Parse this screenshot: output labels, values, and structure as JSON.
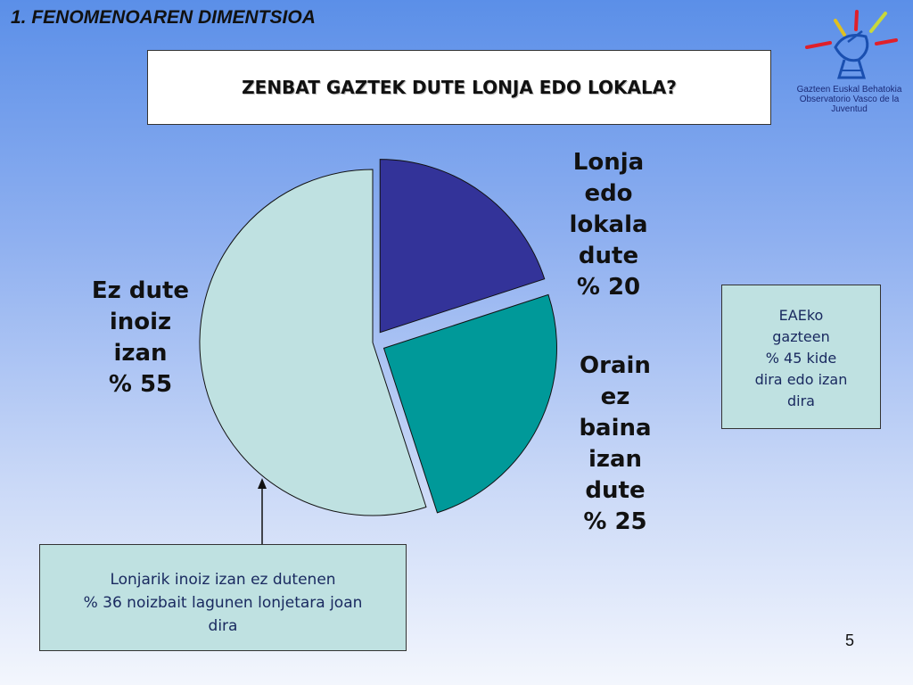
{
  "section_title": "1. FENOMENOAREN DIMENTSIOA",
  "question": "ZENBAT GAZTEK DUTE LONJA EDO LOKALA?",
  "logo": {
    "line1": "Gazteen Euskal Behatokia",
    "line2": "Observatorio Vasco de la Juventud",
    "icon": "satellite-dish-icon"
  },
  "chart_data": {
    "type": "pie",
    "slices": [
      {
        "label": "Lonja edo lokala dute % 20",
        "value": 20,
        "color": "#333399",
        "exploded": true
      },
      {
        "label": "Orain ez baina izan dute % 25",
        "value": 25,
        "color": "#009999",
        "exploded": true
      },
      {
        "label": "Ez dute inoiz izan % 55",
        "value": 55,
        "color": "#bfe1e1",
        "exploded": false
      }
    ],
    "labels": {
      "lonja": [
        "Lonja",
        "edo",
        "lokala",
        "dute",
        "% 20"
      ],
      "orain": [
        "Orain",
        "ez",
        "baina",
        "izan",
        "dute",
        "% 25"
      ],
      "ez": [
        "Ez dute",
        "inoiz",
        "izan",
        "% 55"
      ]
    }
  },
  "notes": {
    "right": [
      "EAEko",
      "gazteen",
      "% 45 kide",
      "dira edo izan",
      "dira"
    ],
    "bottom": [
      "Lonjarik inoiz izan ez dutenen",
      "% 36 noizbait lagunen lonjetara joan",
      "dira"
    ]
  },
  "page_number": "5"
}
